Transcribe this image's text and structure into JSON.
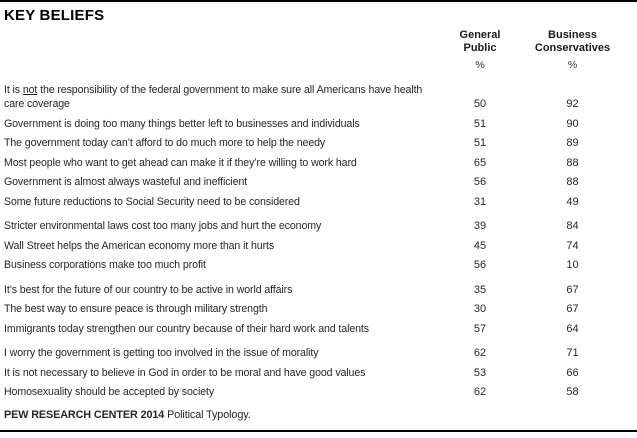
{
  "title": "KEY BELIEFS",
  "columns": [
    {
      "label": "General Public",
      "unit": "%"
    },
    {
      "label": "Business Conservatives",
      "unit": "%"
    }
  ],
  "footer": {
    "source_bold": "PEW RESEARCH CENTER 2014",
    "source_regular": " Political Typology."
  },
  "colors": {
    "text": "#262626",
    "rule": "#000000",
    "background": "#ffffff"
  },
  "chart_data": {
    "type": "table",
    "title": "KEY BELIEFS",
    "columns": [
      "General Public",
      "Business Conservatives"
    ],
    "unit": "%",
    "categories": [
      "It is not the responsibility of the federal government to make sure all Americans have health care coverage",
      "Government is doing too many things better left to businesses and individuals",
      "The government today can’t afford to do much more to help the needy",
      "Most people who want to get ahead can make it if they’re willing to work hard",
      "Government is almost always wasteful and inefficient",
      "Some future reductions to Social Security need to be considered",
      "Stricter environmental laws cost too many jobs and hurt the economy",
      "Wall Street helps the American economy more than it hurts",
      "Business corporations make too much profit",
      "It’s best for the future of our country to be active in world affairs",
      "The best way to ensure peace is through military strength",
      "Immigrants today strengthen our country because of their hard work and talents",
      "I worry the government is getting too involved in the issue of morality",
      "It is not necessary to believe in God in order to be moral and have good values",
      "Homosexuality should be accepted by society"
    ],
    "series": [
      {
        "name": "General Public",
        "values": [
          50,
          51,
          51,
          65,
          56,
          31,
          39,
          45,
          56,
          35,
          30,
          57,
          62,
          53,
          62
        ]
      },
      {
        "name": "Business Conservatives",
        "values": [
          92,
          90,
          89,
          88,
          88,
          49,
          84,
          74,
          10,
          67,
          67,
          64,
          71,
          66,
          58
        ]
      }
    ],
    "groups": [
      [
        0,
        1,
        2,
        3,
        4,
        5
      ],
      [
        6,
        7,
        8
      ],
      [
        9,
        10,
        11
      ],
      [
        12,
        13,
        14
      ]
    ],
    "underline": {
      "0": "not"
    },
    "source": "PEW RESEARCH CENTER 2014 Political Typology."
  }
}
